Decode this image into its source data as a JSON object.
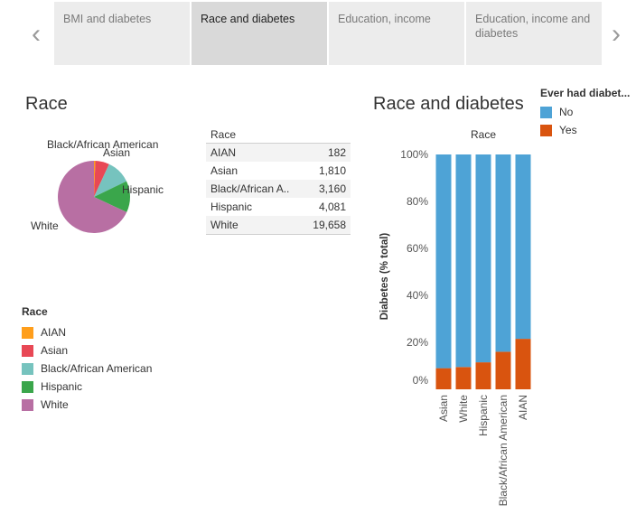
{
  "story": {
    "tabs": [
      {
        "label": "BMI and diabetes",
        "active": false
      },
      {
        "label": "Race and diabetes",
        "active": true
      },
      {
        "label": "Education,  income",
        "active": false
      },
      {
        "label": "Education, income and diabetes",
        "active": false
      }
    ],
    "prev_icon": "chevron-left-icon",
    "next_icon": "chevron-right-icon"
  },
  "left": {
    "title": "Race"
  },
  "right": {
    "title": "Race and diabetes"
  },
  "colors": {
    "AIAN": "#ff9e1b",
    "Asian": "#e84855",
    "Black/African American": "#76c3be",
    "Hispanic": "#3aa64b",
    "White": "#b86fa3",
    "No": "#4ea3d6",
    "Yes": "#d9540f"
  },
  "race_table": {
    "header": "Race",
    "rows": [
      {
        "label": "AIAN",
        "value": "182"
      },
      {
        "label": "Asian",
        "value": "1,810"
      },
      {
        "label": "Black/African A..",
        "value": "3,160"
      },
      {
        "label": "Hispanic",
        "value": "4,081"
      },
      {
        "label": "White",
        "value": "19,658"
      }
    ]
  },
  "race_legend": {
    "title": "Race",
    "items": [
      "AIAN",
      "Asian",
      "Black/African American",
      "Hispanic",
      "White"
    ]
  },
  "diabetes_legend": {
    "title": "Ever had diabet...",
    "items": [
      "No",
      "Yes"
    ]
  },
  "chart_data": [
    {
      "type": "pie",
      "title": "",
      "categories": [
        "AIAN",
        "Asian",
        "Black/African American",
        "Hispanic",
        "White"
      ],
      "values": [
        182,
        1810,
        3160,
        4081,
        19658
      ],
      "labels_shown": [
        "Black/African American",
        "Asian",
        "Hispanic",
        "White"
      ]
    },
    {
      "type": "bar",
      "stacked": true,
      "title": "",
      "header": "Race",
      "categories": [
        "Asian",
        "White",
        "Hispanic",
        "Black/African American",
        "AIAN"
      ],
      "series": [
        {
          "name": "Yes",
          "values": [
            9,
            9.5,
            11.5,
            16,
            21.5
          ]
        },
        {
          "name": "No",
          "values": [
            91,
            90.5,
            88.5,
            84,
            78.5
          ]
        }
      ],
      "xlabel": "",
      "ylabel": "Diabetes (% total)",
      "ylim": [
        0,
        100
      ],
      "yticks": [
        "0%",
        "20%",
        "40%",
        "60%",
        "80%",
        "100%"
      ],
      "grid": false
    }
  ]
}
